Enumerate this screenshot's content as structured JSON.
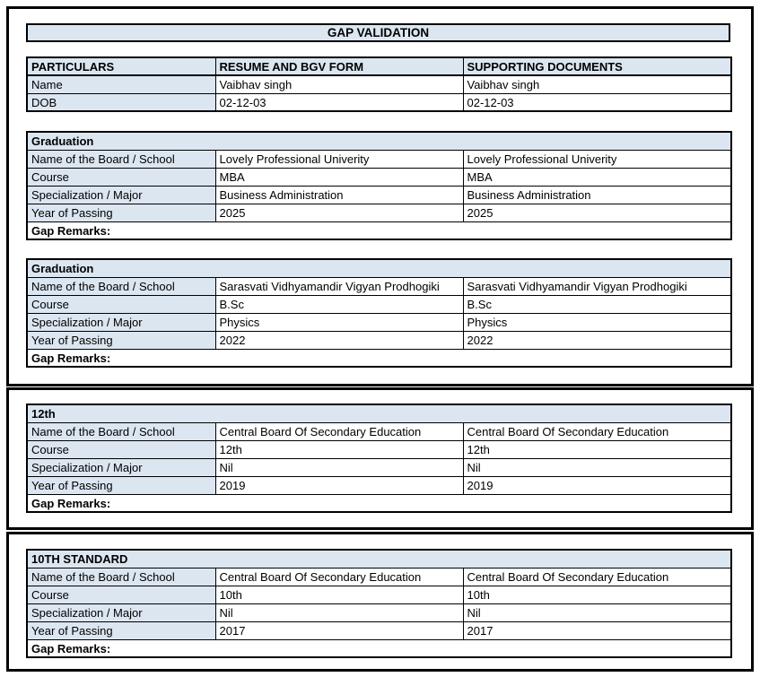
{
  "title": "GAP VALIDATION",
  "colors": {
    "highlight_bg": "#dce6f1",
    "border": "#000000",
    "page_bg": "#ffffff"
  },
  "particulars": {
    "headers": [
      "PARTICULARS",
      "RESUME AND BGV FORM",
      "SUPPORTING DOCUMENTS"
    ],
    "rows": [
      {
        "label": "Name",
        "resume": "Vaibhav singh",
        "supporting": "Vaibhav singh"
      },
      {
        "label": "DOB",
        "resume": "02-12-03",
        "supporting": "02-12-03"
      }
    ]
  },
  "field_labels": {
    "board": "Name of the Board / School",
    "course": "Course",
    "specialization": "Specialization / Major",
    "year": "Year of Passing",
    "gap_remarks": "Gap Remarks:"
  },
  "sections": [
    {
      "title": "Graduation",
      "board_resume": "Lovely Professional Univerity",
      "board_supporting": "Lovely Professional Univerity",
      "course_resume": "MBA",
      "course_supporting": "MBA",
      "specialization_resume": "Business Administration",
      "specialization_supporting": "Business Administration",
      "year_resume": "2025",
      "year_supporting": "2025",
      "gap_remarks_value": ""
    },
    {
      "title": "Graduation",
      "board_resume": "Sarasvati Vidhyamandir Vigyan Prodhogiki",
      "board_supporting": "Sarasvati Vidhyamandir Vigyan Prodhogiki",
      "course_resume": "B.Sc",
      "course_supporting": "B.Sc",
      "specialization_resume": "Physics",
      "specialization_supporting": "Physics",
      "year_resume": "2022",
      "year_supporting": "2022",
      "gap_remarks_value": ""
    },
    {
      "title": "12th",
      "board_resume": "Central Board Of Secondary Education",
      "board_supporting": "Central Board Of Secondary Education",
      "course_resume": "12th",
      "course_supporting": "12th",
      "specialization_resume": "Nil",
      "specialization_supporting": "Nil",
      "year_resume": "2019",
      "year_supporting": "2019",
      "gap_remarks_value": ""
    },
    {
      "title": "10TH STANDARD",
      "board_resume": "Central Board Of Secondary Education",
      "board_supporting": "Central Board Of Secondary Education",
      "course_resume": "10th",
      "course_supporting": "10th",
      "specialization_resume": "Nil",
      "specialization_supporting": "Nil",
      "year_resume": "2017",
      "year_supporting": "2017",
      "gap_remarks_value": ""
    }
  ]
}
